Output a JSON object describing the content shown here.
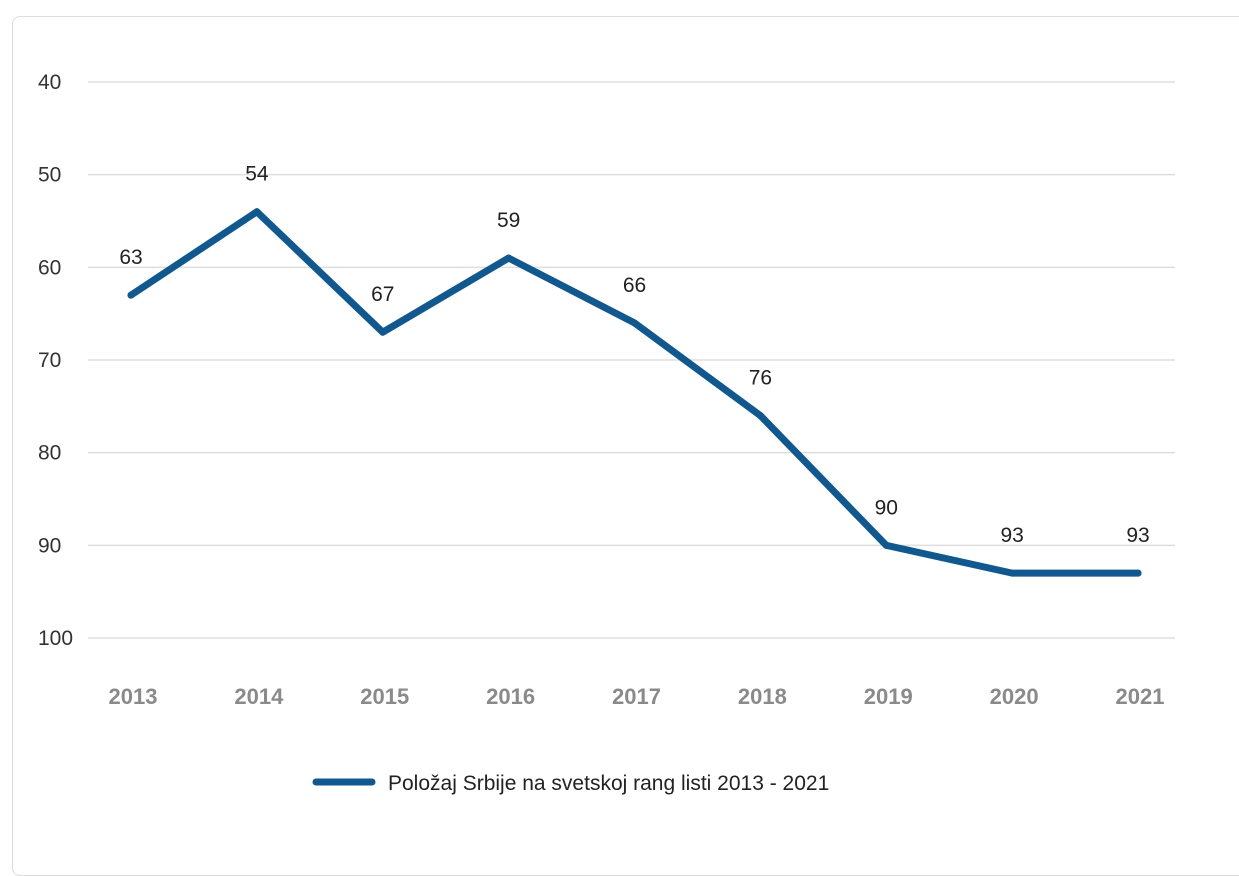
{
  "chart_data": {
    "type": "line",
    "title": "",
    "xlabel": "",
    "ylabel": "",
    "y_inverted": true,
    "ylim": [
      40,
      100
    ],
    "yticks": [
      40,
      50,
      60,
      70,
      80,
      90,
      100
    ],
    "grid": true,
    "legend_position": "bottom-center",
    "x": [
      "2013",
      "2014",
      "2015",
      "2016",
      "2017",
      "2018",
      "2019",
      "2020",
      "2021"
    ],
    "series": [
      {
        "name": "Položaj Srbije na svetskoj rang listi 2013 - 2021",
        "color": "#11588f",
        "values": [
          63,
          54,
          67,
          59,
          66,
          76,
          90,
          93,
          93
        ]
      }
    ]
  }
}
